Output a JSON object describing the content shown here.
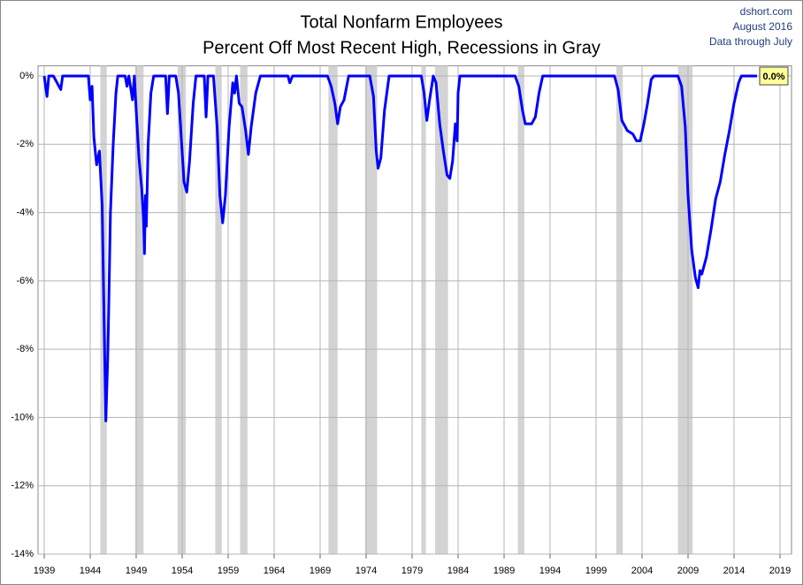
{
  "chart_data": {
    "type": "line",
    "title": "Total Nonfarm Employees",
    "subtitle": "Percent Off Most Recent High, Recessions in Gray",
    "source": [
      "dshort.com",
      "August 2016",
      "Data through July"
    ],
    "annotations": [
      {
        "text": "0.0%",
        "x": 2016.5,
        "y": 0
      }
    ],
    "xlim": [
      1939,
      2019
    ],
    "xticks": [
      1939,
      1944,
      1949,
      1954,
      1959,
      1964,
      1969,
      1974,
      1979,
      1984,
      1989,
      1994,
      1999,
      2004,
      2009,
      2014,
      2019
    ],
    "ylim": [
      -14,
      0.3
    ],
    "yticks": [
      {
        "value": 0,
        "label": "0%"
      },
      {
        "value": -2,
        "label": "-2%"
      },
      {
        "value": -4,
        "label": "-4%"
      },
      {
        "value": -6,
        "label": "-6%"
      },
      {
        "value": -8,
        "label": "-8%"
      },
      {
        "value": -10,
        "label": "-10%"
      },
      {
        "value": -12,
        "label": "-12%"
      },
      {
        "value": -14,
        "label": "-14%"
      }
    ],
    "grid": true,
    "recession_color": "#d3d3d3",
    "recessions": [
      [
        1945.1,
        1945.8
      ],
      [
        1948.9,
        1949.8
      ],
      [
        1953.5,
        1954.4
      ],
      [
        1957.6,
        1958.3
      ],
      [
        1960.3,
        1961.1
      ],
      [
        1969.9,
        1970.9
      ],
      [
        1973.9,
        1975.2
      ],
      [
        1980.0,
        1980.5
      ],
      [
        1981.5,
        1982.9
      ],
      [
        1990.5,
        1991.2
      ],
      [
        2001.2,
        2001.9
      ],
      [
        2007.9,
        2009.5
      ]
    ],
    "series": [
      {
        "name": "Percent Off Most Recent High",
        "color": "#0000ff",
        "x": [
          1939,
          1939.3,
          1939.5,
          1940,
          1940.8,
          1941,
          1943.8,
          1944,
          1944.2,
          1944.4,
          1944.7,
          1945,
          1945.3,
          1945.5,
          1945.7,
          1945.9,
          1946.0,
          1946.2,
          1946.5,
          1946.8,
          1947,
          1947.8,
          1948,
          1948.2,
          1948.6,
          1948.8,
          1949.0,
          1949.3,
          1949.6,
          1949.8,
          1949.9,
          1950,
          1950.1,
          1950.3,
          1950.6,
          1950.9,
          1952.2,
          1952.4,
          1952.6,
          1953.3,
          1953.6,
          1953.9,
          1954.2,
          1954.5,
          1954.8,
          1955.2,
          1955.5,
          1956.4,
          1956.6,
          1956.8,
          1957.4,
          1957.8,
          1958.1,
          1958.4,
          1958.7,
          1959.1,
          1959.5,
          1959.7,
          1959.9,
          1960.2,
          1960.5,
          1960.9,
          1961.2,
          1961.5,
          1962,
          1962.5,
          1965.5,
          1965.7,
          1966,
          1969.8,
          1970.2,
          1970.6,
          1970.9,
          1971.2,
          1971.6,
          1972.1,
          1974.4,
          1974.8,
          1975.1,
          1975.3,
          1975.6,
          1976,
          1976.5,
          1980,
          1980.3,
          1980.6,
          1980.9,
          1981.3,
          1981.6,
          1982,
          1982.4,
          1982.8,
          1983.1,
          1983.4,
          1983.7,
          1983.9,
          1984,
          1984.2,
          1990.2,
          1990.6,
          1991,
          1991.3,
          1992,
          1992.4,
          1992.8,
          1993.2,
          2001.0,
          2001.4,
          2001.8,
          2002.4,
          2003.0,
          2003.4,
          2003.8,
          2004.2,
          2004.6,
          2005.0,
          2005.3,
          2007.9,
          2008.3,
          2008.7,
          2009.0,
          2009.4,
          2009.8,
          2010.1,
          2010.3,
          2010.5,
          2011,
          2011.5,
          2012,
          2012.5,
          2013,
          2013.5,
          2014,
          2014.5,
          2014.8,
          2016.5
        ],
        "values": [
          0,
          -0.6,
          0,
          0,
          -0.4,
          0,
          0,
          -0.7,
          -0.3,
          -1.8,
          -2.6,
          -2.2,
          -3.8,
          -7,
          -10.1,
          -8.3,
          -7,
          -4,
          -2,
          -0.5,
          0,
          0,
          -0.3,
          0,
          -0.7,
          0,
          -1,
          -2.4,
          -3.3,
          -4.2,
          -5.2,
          -3.5,
          -4.4,
          -2,
          -0.5,
          0,
          0,
          -1.1,
          0,
          0,
          -0.5,
          -1.8,
          -3.1,
          -3.4,
          -2.5,
          -0.8,
          0,
          0,
          -1.2,
          0,
          0,
          -1.5,
          -3.5,
          -4.3,
          -3.5,
          -1.5,
          -0.2,
          -0.5,
          0,
          -0.8,
          -0.9,
          -1.6,
          -2.3,
          -1.5,
          -0.5,
          0,
          0,
          -0.2,
          0,
          0,
          -0.3,
          -0.8,
          -1.4,
          -0.9,
          -0.7,
          0,
          0,
          -0.6,
          -2.2,
          -2.7,
          -2.4,
          -1,
          0,
          0,
          -0.5,
          -1.3,
          -0.7,
          0,
          -0.2,
          -1.4,
          -2.2,
          -2.9,
          -3.0,
          -2.5,
          -1.4,
          -1.9,
          -0.5,
          0,
          0,
          -0.3,
          -1.0,
          -1.4,
          -1.4,
          -1.2,
          -0.5,
          0,
          0,
          -0.4,
          -1.3,
          -1.6,
          -1.7,
          -1.9,
          -1.9,
          -1.4,
          -0.8,
          -0.1,
          0,
          0,
          -0.3,
          -1.5,
          -3.5,
          -5.1,
          -5.9,
          -6.2,
          -5.7,
          -5.8,
          -5.3,
          -4.5,
          -3.6,
          -3.1,
          -2.3,
          -1.6,
          -0.8,
          -0.2,
          0,
          0
        ]
      }
    ]
  }
}
